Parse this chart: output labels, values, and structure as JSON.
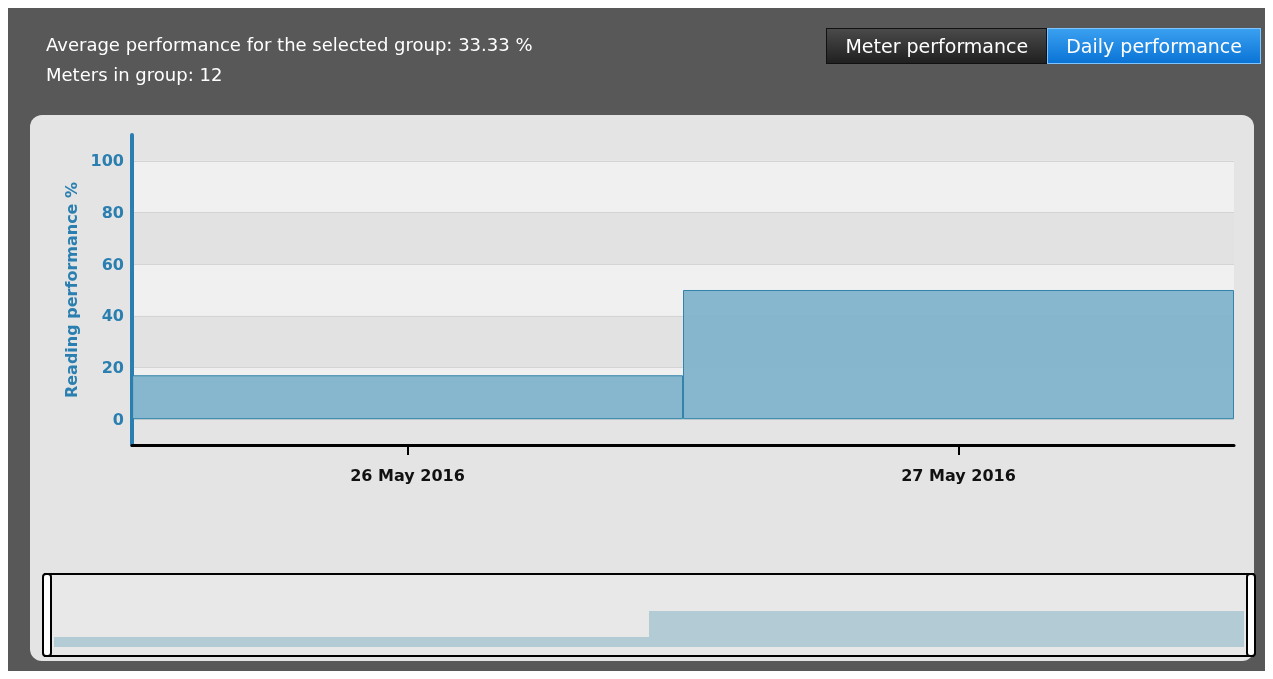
{
  "chart_data": {
    "type": "bar",
    "ylabel": "Reading performance %",
    "categories": [
      "26 May 2016",
      "27 May 2016"
    ],
    "values": [
      17,
      50
    ],
    "color": "#7fb3cb",
    "ylim": [
      -10,
      110
    ],
    "yticks": [
      0,
      20,
      40,
      60,
      80,
      100
    ],
    "grid": "y",
    "annotations": [
      "Average performance for the selected group: 33.33 %",
      "Meters in group: 12",
      "Meter performance",
      "Daily performance"
    ]
  }
}
